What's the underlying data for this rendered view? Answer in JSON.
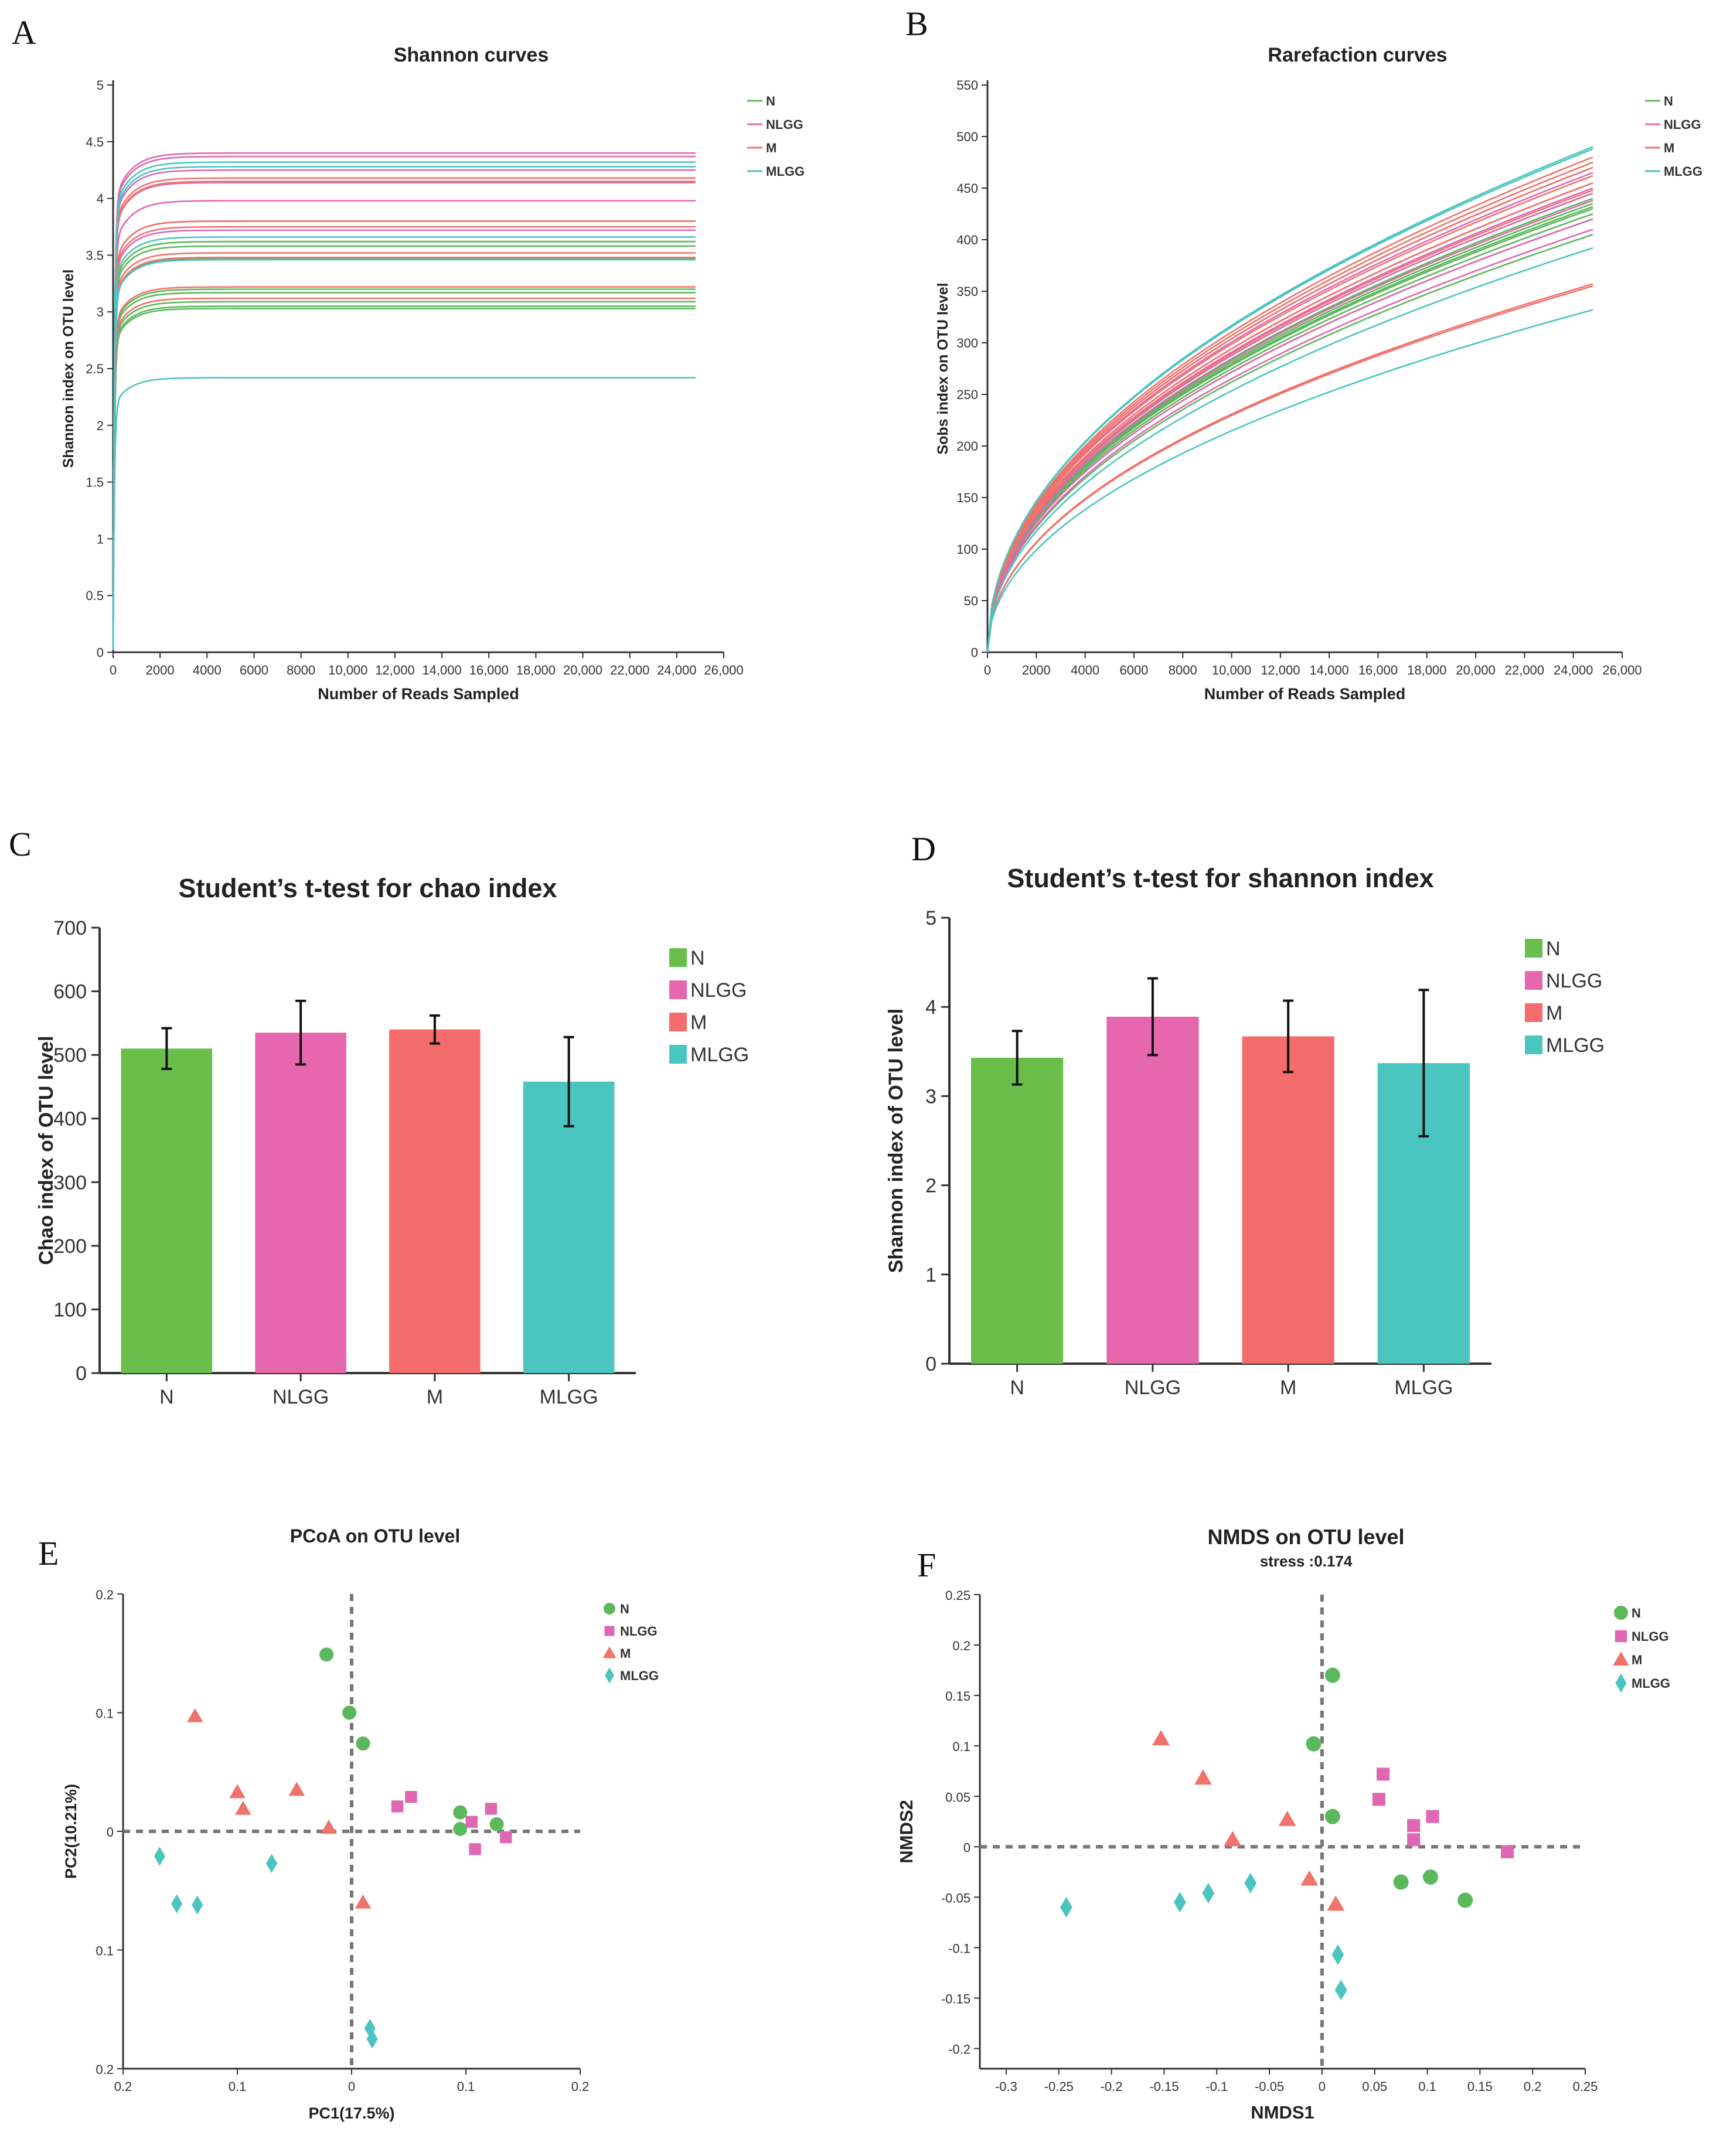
{
  "panels": [
    "A",
    "B",
    "C",
    "D",
    "E",
    "F"
  ],
  "chart_data": [
    {
      "id": "A",
      "type": "line",
      "title": "Shannon curves",
      "xlabel": "Number of Reads Sampled",
      "ylabel": "Shannon index on OTU level",
      "xlim": [
        0,
        26000
      ],
      "ylim": [
        0,
        5
      ],
      "x_ticks": [
        "0",
        "2000",
        "4000",
        "6000",
        "8000",
        "10,000",
        "12,000",
        "14,000",
        "16,000",
        "18,000",
        "20,000",
        "22,000",
        "24,000",
        "26,000"
      ],
      "y_ticks": [
        "0",
        "0.5",
        "1",
        "1.5",
        "2",
        "2.5",
        "3",
        "3.5",
        "4",
        "4.5",
        "5"
      ],
      "legend": [
        {
          "label": "N",
          "color": "#5cb85c"
        },
        {
          "label": "NLGG",
          "color": "#e067b4"
        },
        {
          "label": "M",
          "color": "#f0736a"
        },
        {
          "label": "MLGG",
          "color": "#4bc5c0"
        }
      ],
      "x_max_sampled": 24800,
      "series": [
        {
          "group": "N",
          "plateau": [
            3.62,
            3.47,
            3.17,
            3.05,
            3.09,
            3.58,
            3.03,
            3.2
          ]
        },
        {
          "group": "NLGG",
          "plateau": [
            4.4,
            4.37,
            4.25,
            4.14,
            3.98,
            3.8,
            3.72,
            3.48
          ]
        },
        {
          "group": "M",
          "plateau": [
            4.18,
            4.15,
            3.75,
            3.52,
            3.48,
            3.22,
            3.12,
            3.8
          ]
        },
        {
          "group": "MLGG",
          "plateau": [
            4.32,
            4.28,
            3.66,
            3.46,
            2.42
          ]
        }
      ]
    },
    {
      "id": "B",
      "type": "line",
      "title": "Rarefaction curves",
      "xlabel": "Number of Reads Sampled",
      "ylabel": "Sobs index on OTU level",
      "xlim": [
        0,
        26000
      ],
      "ylim": [
        0,
        550
      ],
      "x_ticks": [
        "0",
        "2000",
        "4000",
        "6000",
        "8000",
        "10,000",
        "12,000",
        "14,000",
        "16,000",
        "18,000",
        "20,000",
        "22,000",
        "24,000",
        "26,000"
      ],
      "y_ticks": [
        "0",
        "50",
        "100",
        "150",
        "200",
        "250",
        "300",
        "350",
        "400",
        "450",
        "500",
        "550"
      ],
      "legend": [
        {
          "label": "N",
          "color": "#5cb85c"
        },
        {
          "label": "NLGG",
          "color": "#e067b4"
        },
        {
          "label": "M",
          "color": "#f0736a"
        },
        {
          "label": "MLGG",
          "color": "#4bc5c0"
        }
      ],
      "x_max_sampled": 24800,
      "series": [
        {
          "group": "N",
          "end": [
            445,
            440,
            435,
            430,
            425,
            420,
            432,
            405
          ]
        },
        {
          "group": "NLGG",
          "end": [
            470,
            465,
            455,
            450,
            445,
            438,
            420,
            410
          ]
        },
        {
          "group": "M",
          "end": [
            480,
            475,
            470,
            462,
            455,
            448,
            355,
            357
          ]
        },
        {
          "group": "MLGG",
          "end": [
            490,
            488,
            392,
            332
          ]
        }
      ]
    },
    {
      "id": "C",
      "type": "bar",
      "title": "Student’s t-test for chao index",
      "xlabel": "",
      "ylabel": "Chao index of OTU level",
      "categories": [
        "N",
        "NLGG",
        "M",
        "MLGG"
      ],
      "values": [
        510,
        535,
        540,
        458
      ],
      "errors": [
        32,
        50,
        22,
        70
      ],
      "colors": [
        "#6abf4b",
        "#e667ae",
        "#f56c6c",
        "#4bc5c0"
      ],
      "ylim": [
        0,
        700
      ],
      "y_ticks": [
        "0",
        "100",
        "200",
        "300",
        "400",
        "500",
        "600",
        "700"
      ],
      "legend": [
        "N",
        "NLGG",
        "M",
        "MLGG"
      ]
    },
    {
      "id": "D",
      "type": "bar",
      "title": "Student’s t-test for shannon index",
      "xlabel": "",
      "ylabel": "Shannon index of OTU level",
      "categories": [
        "N",
        "NLGG",
        "M",
        "MLGG"
      ],
      "values": [
        3.43,
        3.89,
        3.67,
        3.37
      ],
      "errors": [
        0.3,
        0.43,
        0.4,
        0.82
      ],
      "colors": [
        "#6abf4b",
        "#e667ae",
        "#f56c6c",
        "#4bc5c0"
      ],
      "ylim": [
        0,
        5
      ],
      "y_ticks": [
        "0",
        "1",
        "2",
        "3",
        "4",
        "5"
      ],
      "legend": [
        "N",
        "NLGG",
        "M",
        "MLGG"
      ]
    },
    {
      "id": "E",
      "type": "scatter",
      "title": "PCoA on OTU level",
      "xlabel": "PC1(17.5%)",
      "ylabel": "PC2(10.21%)",
      "xlim": [
        -0.2,
        0.2
      ],
      "ylim": [
        -0.2,
        0.2
      ],
      "x_ticks": [
        "0.2",
        "0.1",
        "0",
        "0.1",
        "0.2"
      ],
      "y_ticks": [
        "0.2",
        "0.1",
        "0",
        "0.1",
        "0.2"
      ],
      "legend": [
        "N",
        "NLGG",
        "M",
        "MLGG"
      ],
      "series": [
        {
          "name": "N",
          "marker": "circle",
          "color": "#5cb85c",
          "points": [
            [
              -0.022,
              0.149
            ],
            [
              -0.002,
              0.1
            ],
            [
              0.01,
              0.074
            ],
            [
              0.095,
              0.016
            ],
            [
              0.095,
              0.002
            ],
            [
              0.127,
              0.006
            ]
          ]
        },
        {
          "name": "NLGG",
          "marker": "square",
          "color": "#e067b4",
          "points": [
            [
              0.04,
              0.021
            ],
            [
              0.052,
              0.029
            ],
            [
              0.105,
              0.008
            ],
            [
              0.122,
              0.019
            ],
            [
              0.108,
              -0.015
            ],
            [
              0.135,
              -0.005
            ]
          ]
        },
        {
          "name": "M",
          "marker": "triangle",
          "color": "#f0736a",
          "points": [
            [
              -0.137,
              0.097
            ],
            [
              -0.1,
              0.033
            ],
            [
              -0.095,
              0.019
            ],
            [
              -0.048,
              0.035
            ],
            [
              -0.02,
              0.003
            ],
            [
              0.01,
              -0.06
            ]
          ]
        },
        {
          "name": "MLGG",
          "marker": "diamond",
          "color": "#4bc5c0",
          "points": [
            [
              -0.168,
              -0.021
            ],
            [
              -0.153,
              -0.061
            ],
            [
              -0.135,
              -0.062
            ],
            [
              -0.07,
              -0.027
            ],
            [
              0.016,
              -0.166
            ],
            [
              0.018,
              -0.175
            ]
          ]
        }
      ]
    },
    {
      "id": "F",
      "type": "scatter",
      "title": "NMDS on OTU level",
      "subtitle": "stress :0.174",
      "xlabel": "NMDS1",
      "ylabel": "NMDS2",
      "xlim": [
        -0.325,
        0.25
      ],
      "ylim": [
        -0.22,
        0.25
      ],
      "x_ticks": [
        -0.3,
        -0.25,
        -0.2,
        -0.15,
        -0.1,
        -0.05,
        0,
        0.05,
        0.1,
        0.15,
        0.2,
        0.25
      ],
      "x_tick_labels": [
        "-0.3",
        "-0.25",
        "-0.2",
        "-0.15",
        "-0.1",
        "-0.05",
        "0",
        "0.05",
        "0.1",
        "0.15",
        "0.2",
        "0.25"
      ],
      "y_ticks": [
        -0.2,
        -0.15,
        -0.1,
        -0.05,
        0,
        0.05,
        0.1,
        0.15,
        0.2,
        0.25
      ],
      "y_tick_labels": [
        "-0.2",
        "-0.15",
        "-0.1",
        "-0.05",
        "0",
        "0.05",
        "0.1",
        "0.15",
        "0.2",
        "0.25"
      ],
      "legend": [
        "N",
        "NLGG",
        "M",
        "MLGG"
      ],
      "series": [
        {
          "name": "N",
          "marker": "circle",
          "color": "#5cb85c",
          "points": [
            [
              0.01,
              0.17
            ],
            [
              -0.008,
              0.102
            ],
            [
              0.01,
              0.03
            ],
            [
              0.075,
              -0.035
            ],
            [
              0.103,
              -0.03
            ],
            [
              0.136,
              -0.053
            ]
          ]
        },
        {
          "name": "NLGG",
          "marker": "square",
          "color": "#e067b4",
          "points": [
            [
              0.058,
              0.072
            ],
            [
              0.054,
              0.047
            ],
            [
              0.087,
              0.021
            ],
            [
              0.087,
              0.007
            ],
            [
              0.105,
              0.03
            ],
            [
              0.176,
              -0.005
            ]
          ]
        },
        {
          "name": "M",
          "marker": "triangle",
          "color": "#f0736a",
          "points": [
            [
              -0.153,
              0.107
            ],
            [
              -0.113,
              0.068
            ],
            [
              -0.085,
              0.007
            ],
            [
              -0.033,
              0.027
            ],
            [
              -0.012,
              -0.032
            ],
            [
              0.013,
              -0.057
            ]
          ]
        },
        {
          "name": "MLGG",
          "marker": "diamond",
          "color": "#4bc5c0",
          "points": [
            [
              -0.243,
              -0.06
            ],
            [
              -0.135,
              -0.055
            ],
            [
              -0.108,
              -0.046
            ],
            [
              -0.068,
              -0.036
            ],
            [
              0.015,
              -0.107
            ],
            [
              0.018,
              -0.142
            ]
          ]
        }
      ]
    }
  ]
}
